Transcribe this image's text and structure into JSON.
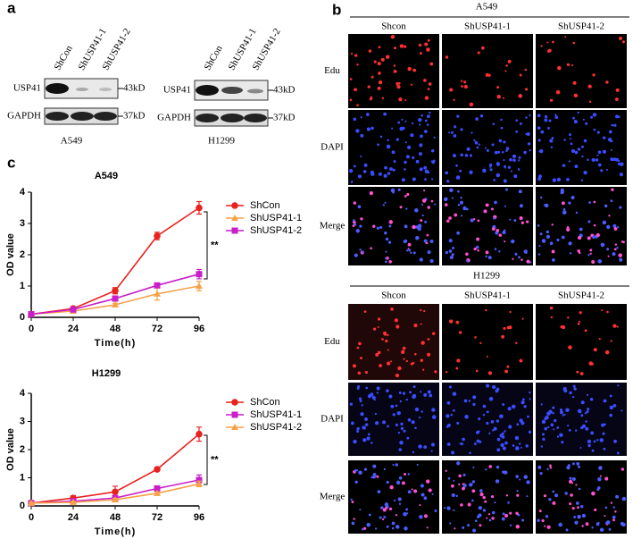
{
  "panel_a": {
    "label": "a",
    "blots": [
      {
        "lanes": [
          "ShCon",
          "ShUSP41-1",
          "ShUSP41-2"
        ],
        "rows": [
          "USP41",
          "GAPDH"
        ],
        "markers": [
          "43kD",
          "37kD"
        ],
        "cell_line": "A549"
      },
      {
        "lanes": [
          "ShCon",
          "ShUSP41-1",
          "ShUSP41-2"
        ],
        "rows": [
          "USP41",
          "GAPDH"
        ],
        "markers": [
          "43kD",
          "37kD"
        ],
        "cell_line": "H1299"
      }
    ]
  },
  "panel_b": {
    "label": "b",
    "groups": [
      {
        "title": "A549",
        "columns": [
          "Shcon",
          "ShUSP41-1",
          "ShUSP41-2"
        ],
        "rows": [
          "Edu",
          "DAPI",
          "Merge"
        ]
      },
      {
        "title": "H1299",
        "columns": [
          "Shcon",
          "ShUSP41-1",
          "ShUSP41-2"
        ],
        "rows": [
          "Edu",
          "DAPI",
          "Merge"
        ]
      }
    ]
  },
  "panel_c": {
    "label": "c"
  },
  "chart_data": [
    {
      "type": "line",
      "title": "A549",
      "xlabel": "Time(h)",
      "ylabel": "OD value",
      "x": [
        0,
        24,
        48,
        72,
        96
      ],
      "xlim": [
        0,
        96
      ],
      "xticks": [
        0,
        24,
        48,
        72,
        96
      ],
      "ylim": [
        0,
        4
      ],
      "yticks": [
        0,
        1,
        2,
        3,
        4
      ],
      "annotation": "**",
      "series": [
        {
          "name": "ShCon",
          "color": "#e8231f",
          "marker": "circle",
          "values": [
            0.1,
            0.28,
            0.85,
            2.6,
            3.5
          ],
          "errors": [
            0.05,
            0.05,
            0.1,
            0.12,
            0.2
          ]
        },
        {
          "name": "ShUSP41-1",
          "color": "#f5a24a",
          "marker": "triangle",
          "values": [
            0.1,
            0.2,
            0.4,
            0.75,
            1.0
          ],
          "errors": [
            0.03,
            0.03,
            0.05,
            0.2,
            0.15
          ]
        },
        {
          "name": "ShUSP41-2",
          "color": "#c81fc8",
          "marker": "square",
          "values": [
            0.1,
            0.25,
            0.6,
            1.02,
            1.38
          ],
          "errors": [
            0.03,
            0.04,
            0.06,
            0.05,
            0.15
          ]
        }
      ]
    },
    {
      "type": "line",
      "title": "H1299",
      "xlabel": "Time(h)",
      "ylabel": "OD value",
      "x": [
        0,
        24,
        48,
        72,
        96
      ],
      "xlim": [
        0,
        96
      ],
      "xticks": [
        0,
        24,
        48,
        72,
        96
      ],
      "ylim": [
        0,
        4
      ],
      "yticks": [
        0,
        1,
        2,
        3,
        4
      ],
      "annotation": "**",
      "series": [
        {
          "name": "ShCon",
          "color": "#e8231f",
          "marker": "circle",
          "values": [
            0.1,
            0.28,
            0.5,
            1.3,
            2.55
          ],
          "errors": [
            0.05,
            0.08,
            0.2,
            0.05,
            0.25
          ]
        },
        {
          "name": "ShUSP41-1",
          "color": "#c81fc8",
          "marker": "square",
          "values": [
            0.1,
            0.17,
            0.28,
            0.62,
            0.92
          ],
          "errors": [
            0.03,
            0.03,
            0.05,
            0.08,
            0.18
          ]
        },
        {
          "name": "ShUSP41-2",
          "color": "#f5a24a",
          "marker": "triangle",
          "values": [
            0.1,
            0.13,
            0.22,
            0.45,
            0.78
          ],
          "errors": [
            0.03,
            0.03,
            0.05,
            0.05,
            0.1
          ]
        }
      ]
    }
  ]
}
